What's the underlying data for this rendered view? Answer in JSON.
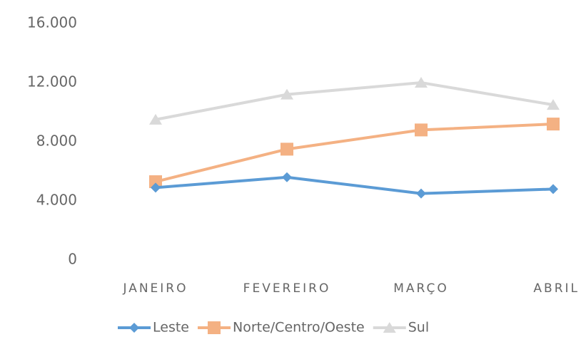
{
  "chart_data": {
    "type": "line",
    "categories": [
      "JANEIRO",
      "FEVEREIRO",
      "MARÇO",
      "ABRIL"
    ],
    "series": [
      {
        "name": "Leste",
        "color": "#5b9bd5",
        "marker": "diamond",
        "values": [
          4900,
          5600,
          4500,
          4800
        ]
      },
      {
        "name": "Norte/Centro/Oeste",
        "color": "#f4b183",
        "marker": "square",
        "values": [
          5300,
          7500,
          8800,
          9200
        ]
      },
      {
        "name": "Sul",
        "color": "#d9d9d9",
        "marker": "triangle",
        "values": [
          9500,
          11200,
          12000,
          10500
        ]
      }
    ],
    "ylim": [
      0,
      16000
    ],
    "yticks": [
      0,
      {
        "value": 4000,
        "label": "4.000"
      },
      {
        "value": 8000,
        "label": "8.000"
      },
      {
        "value": 12000,
        "label": "12.000"
      },
      {
        "value": 16000,
        "label": "16.000"
      }
    ],
    "grid": false,
    "legend": "bottom"
  }
}
